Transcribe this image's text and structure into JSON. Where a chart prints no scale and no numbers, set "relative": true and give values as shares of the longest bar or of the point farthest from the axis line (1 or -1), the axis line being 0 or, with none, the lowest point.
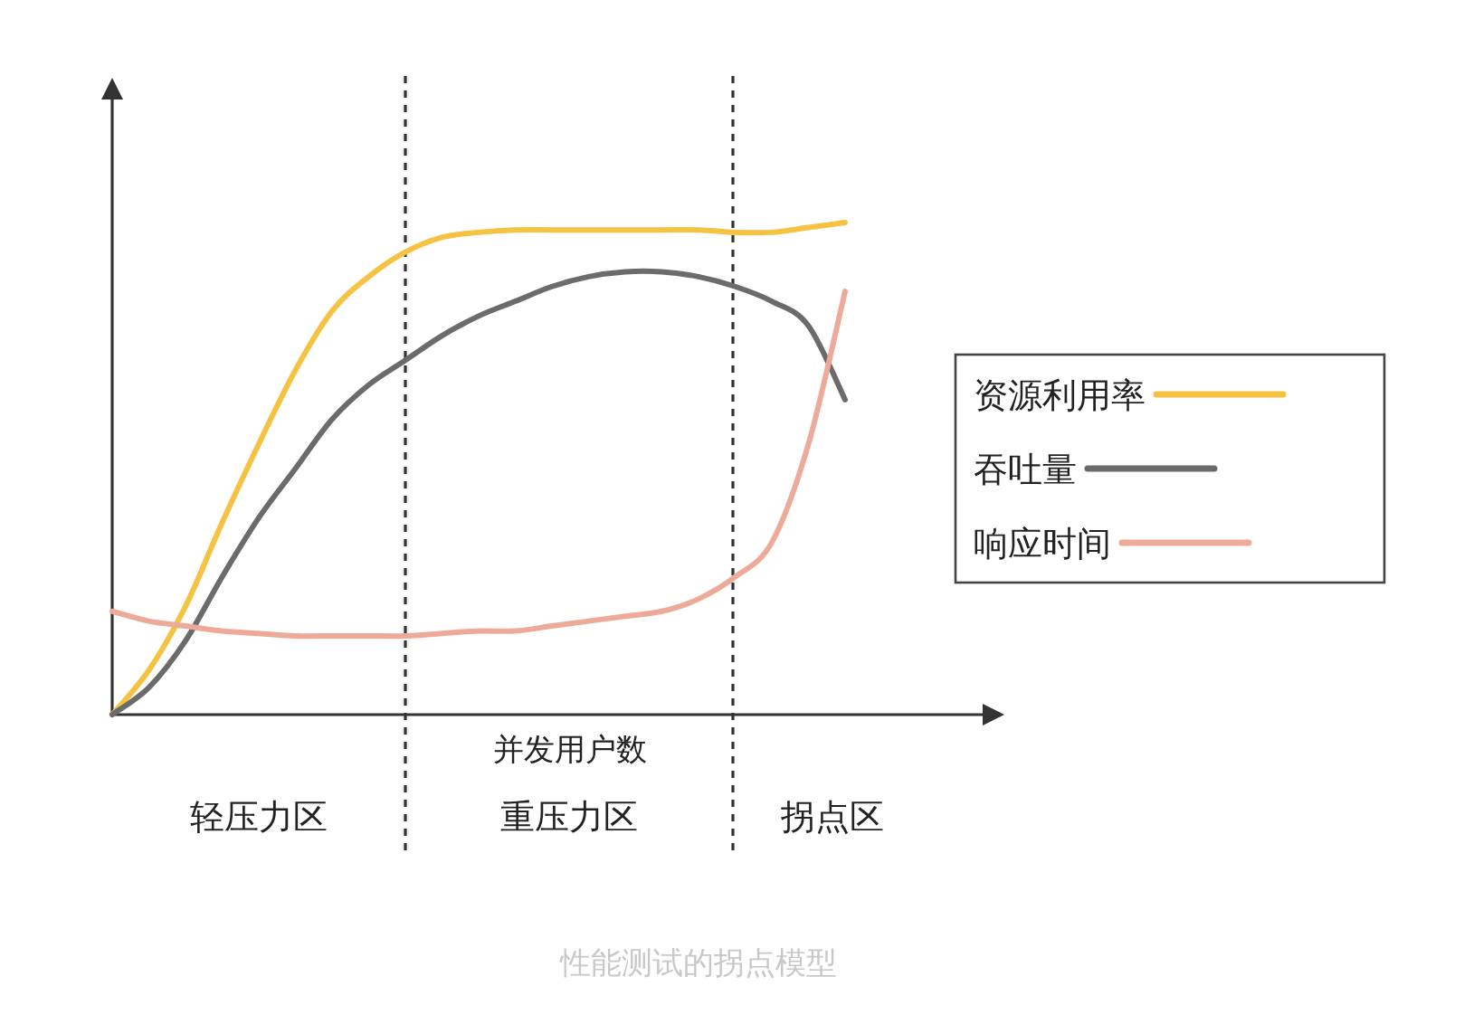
{
  "chart_data": {
    "type": "line",
    "relative": true,
    "xlabel": "并发用户数",
    "legend": "right",
    "marker": "none",
    "line_style": "solid",
    "categories": [
      null,
      null,
      null,
      null,
      null,
      null,
      null,
      null,
      null,
      null,
      null,
      null,
      null,
      null,
      null,
      null,
      null,
      null,
      null,
      null,
      null
    ],
    "series": [
      {
        "name": "资源利用率",
        "color": "#f5c242",
        "values": [
          0,
          0.09,
          0.22,
          0.39,
          0.55,
          0.7,
          0.82,
          0.89,
          0.94,
          0.97,
          0.98,
          0.985,
          0.985,
          0.985,
          0.985,
          0.985,
          0.985,
          0.98,
          0.98,
          0.99,
          1.0
        ]
      },
      {
        "name": "吞吐量",
        "color": "#6b6b6b",
        "values": [
          0,
          0.055,
          0.15,
          0.28,
          0.4,
          0.5,
          0.6,
          0.67,
          0.72,
          0.77,
          0.81,
          0.84,
          0.87,
          0.89,
          0.9,
          0.9,
          0.89,
          0.87,
          0.84,
          0.79,
          0.64
        ]
      },
      {
        "name": "响应时间",
        "color": "#eeaa99",
        "values": [
          0.21,
          0.19,
          0.18,
          0.17,
          0.165,
          0.16,
          0.16,
          0.16,
          0.16,
          0.165,
          0.17,
          0.17,
          0.18,
          0.19,
          0.2,
          0.21,
          0.235,
          0.28,
          0.35,
          0.55,
          0.86
        ]
      }
    ],
    "annotations": [
      "轻压力区",
      "重压力区",
      "拐点区",
      "性能测试的拐点模型"
    ]
  }
}
